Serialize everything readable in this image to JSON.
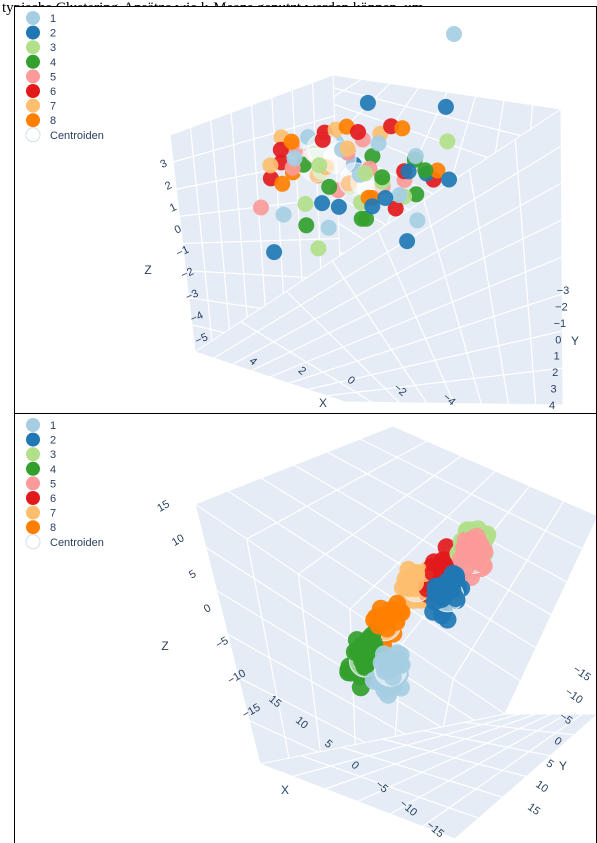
{
  "caption": "typische Clustering-Ansätze wie k-Means genutzt werden können, um",
  "legend": [
    {
      "label": "1",
      "color": "#a6cee3"
    },
    {
      "label": "2",
      "color": "#1f78b4"
    },
    {
      "label": "3",
      "color": "#b2df8a"
    },
    {
      "label": "4",
      "color": "#33a02c"
    },
    {
      "label": "5",
      "color": "#fb9a99"
    },
    {
      "label": "6",
      "color": "#e31a1c"
    },
    {
      "label": "7",
      "color": "#fdbf6f"
    },
    {
      "label": "8",
      "color": "#ff7f00"
    },
    {
      "label": "Centroiden",
      "color": "#ffffff"
    }
  ],
  "chart_data": [
    {
      "type": "scatter3d",
      "xlabel": "X",
      "ylabel": "Y",
      "zlabel": "Z",
      "x_ticks": [
        "4",
        "2",
        "0",
        "−2",
        "−4"
      ],
      "y_ticks": [
        "−3",
        "−2",
        "−1",
        "0",
        "1",
        "2",
        "3",
        "4"
      ],
      "z_ticks": [
        "3",
        "2",
        "1",
        "0",
        "−1",
        "−2",
        "−3",
        "−4",
        "−5"
      ],
      "xlim": [
        -5,
        5
      ],
      "ylim": [
        -4,
        4
      ],
      "zlim": [
        -5,
        4
      ],
      "series": [
        {
          "name": "1",
          "color": "#a6cee3",
          "points": [
            [
              0.5,
              -2,
              3
            ],
            [
              2,
              1,
              -1
            ],
            [
              -1,
              2,
              -4
            ],
            [
              -3,
              3,
              2
            ],
            [
              1,
              -3,
              1
            ],
            [
              3,
              0,
              -2
            ],
            [
              0.2,
              1,
              0
            ],
            [
              -2,
              -2,
              2.5
            ],
            [
              1.5,
              2.5,
              -3.2
            ],
            [
              -0.5,
              -1,
              1.5
            ],
            [
              2.8,
              -1.5,
              2
            ],
            [
              -2.7,
              1.2,
              -1
            ]
          ]
        },
        {
          "name": "2",
          "color": "#1f78b4",
          "points": [
            [
              3,
              2,
              -3
            ],
            [
              4,
              1,
              -2
            ],
            [
              3.5,
              0,
              -1
            ],
            [
              -3,
              -1,
              3
            ],
            [
              -4,
              2,
              0
            ],
            [
              0,
              3,
              -3
            ],
            [
              -2,
              1,
              -4
            ],
            [
              4,
              -2,
              -1
            ],
            [
              3.8,
              3,
              -3.5
            ],
            [
              -3.5,
              -2,
              1.5
            ],
            [
              1.2,
              2.8,
              -2.6
            ],
            [
              -1,
              3.5,
              -3.8
            ]
          ]
        },
        {
          "name": "3",
          "color": "#b2df8a",
          "points": [
            [
              1,
              -2,
              0.5
            ],
            [
              0,
              1,
              -1.5
            ],
            [
              -2,
              3,
              -2
            ],
            [
              2,
              -1,
              -2
            ],
            [
              1.5,
              1,
              -1
            ],
            [
              -1,
              -1,
              0
            ],
            [
              0.5,
              2.2,
              -3.1
            ],
            [
              2.6,
              -0.5,
              0.8
            ],
            [
              -1.5,
              -2.5,
              1.9
            ],
            [
              3,
              1.5,
              -2.4
            ]
          ]
        },
        {
          "name": "4",
          "color": "#33a02c",
          "points": [
            [
              -2,
              -3,
              3
            ],
            [
              3,
              -1,
              -1
            ],
            [
              2,
              2,
              -2
            ],
            [
              0,
              0,
              -2
            ],
            [
              -1,
              2,
              -3
            ],
            [
              1,
              -2,
              2
            ],
            [
              -3,
              1,
              -1
            ],
            [
              3.8,
              0.5,
              -0.8
            ],
            [
              0.5,
              3.2,
              -3
            ],
            [
              -2.2,
              -0.5,
              0.6
            ],
            [
              1.8,
              1.1,
              -2.8
            ]
          ]
        },
        {
          "name": "5",
          "color": "#fb9a99",
          "points": [
            [
              2,
              -2,
              2
            ],
            [
              -1,
              -3,
              3
            ],
            [
              0,
              -1,
              0
            ],
            [
              -2,
              0,
              -1
            ],
            [
              3,
              -3,
              1.5
            ],
            [
              -1,
              1.5,
              -2
            ],
            [
              1.2,
              -2.4,
              3.1
            ],
            [
              -2.8,
              -1.2,
              1.8
            ],
            [
              0.3,
              0.6,
              -0.6
            ]
          ]
        },
        {
          "name": "6",
          "color": "#e31a1c",
          "points": [
            [
              1,
              -3,
              3
            ],
            [
              -1,
              -2,
              3
            ],
            [
              2,
              -3,
              2.5
            ],
            [
              -2,
              -1,
              2
            ],
            [
              0,
              2,
              -2
            ],
            [
              -3,
              -2,
              2
            ],
            [
              3,
              -2,
              2.8
            ],
            [
              -0.6,
              3,
              -3.3
            ],
            [
              1.7,
              2.4,
              -3.6
            ],
            [
              -3.6,
              -0.3,
              1.4
            ],
            [
              0.8,
              -1.2,
              2.2
            ]
          ]
        },
        {
          "name": "7",
          "color": "#fdbf6f",
          "points": [
            [
              0,
              -3,
              3.5
            ],
            [
              -3,
              -3,
              2.5
            ],
            [
              1,
              -1,
              1
            ],
            [
              -2,
              -2,
              3
            ],
            [
              2,
              -3,
              3
            ],
            [
              -4,
              -1,
              1.7
            ],
            [
              2.5,
              -2.2,
              3.4
            ],
            [
              -0.8,
              -2.8,
              2.6
            ],
            [
              1.6,
              0.3,
              0.6
            ]
          ]
        },
        {
          "name": "8",
          "color": "#ff7f00",
          "points": [
            [
              -3,
              -2,
              3
            ],
            [
              2,
              -2,
              3
            ],
            [
              3,
              -2,
              1.5
            ],
            [
              -1,
              3,
              -3
            ],
            [
              0,
              -3,
              2.5
            ],
            [
              -4,
              0,
              1
            ],
            [
              1,
              1,
              -2
            ],
            [
              -2.4,
              -3.1,
              2.2
            ],
            [
              2.9,
              1.8,
              -2.5
            ],
            [
              0.6,
              -0.2,
              -0.4
            ]
          ]
        },
        {
          "name": "Centroiden",
          "color": "#ffffff",
          "points": [
            [
              0.2,
              -1.5,
              2
            ],
            [
              -0.5,
              -2,
              2.5
            ],
            [
              0.3,
              0.5,
              -1
            ],
            [
              -0.2,
              -1,
              1.2
            ],
            [
              0.8,
              0.2,
              -0.6
            ],
            [
              -1,
              -2.5,
              2.2
            ]
          ]
        }
      ]
    },
    {
      "type": "scatter3d",
      "xlabel": "X",
      "ylabel": "Y",
      "zlabel": "Z",
      "x_ticks": [
        "15",
        "10",
        "5",
        "0",
        "−5",
        "−10",
        "−15"
      ],
      "y_ticks": [
        "−15",
        "−10",
        "−5",
        "0",
        "5",
        "10",
        "15"
      ],
      "z_ticks": [
        "15",
        "10",
        "5",
        "0",
        "−5",
        "−10",
        "−15"
      ],
      "xlim": [
        -15,
        15
      ],
      "ylim": [
        -15,
        15
      ],
      "zlim": [
        -15,
        15
      ],
      "series": [
        {
          "name": "1",
          "color": "#a6cee3",
          "center": [
            -3,
            -3,
            -10
          ],
          "spread": 2.5,
          "count": 40
        },
        {
          "name": "2",
          "color": "#1f78b4",
          "center": [
            6,
            5,
            -6
          ],
          "spread": 2.4,
          "count": 38
        },
        {
          "name": "3",
          "color": "#b2df8a",
          "center": [
            6,
            -6,
            9
          ],
          "spread": 2.6,
          "count": 32
        },
        {
          "name": "4",
          "color": "#33a02c",
          "center": [
            -9,
            -9,
            -4
          ],
          "spread": 2.8,
          "count": 40
        },
        {
          "name": "5",
          "color": "#fb9a99",
          "center": [
            7,
            -4,
            6
          ],
          "spread": 2.4,
          "count": 34
        },
        {
          "name": "6",
          "color": "#e31a1c",
          "center": [
            0,
            -14,
            11
          ],
          "spread": 2.8,
          "count": 42
        },
        {
          "name": "7",
          "color": "#fdbf6f",
          "center": [
            -4,
            -14,
            10
          ],
          "spread": 2.4,
          "count": 30
        },
        {
          "name": "8",
          "color": "#ff7f00",
          "center": [
            -7,
            -9,
            1
          ],
          "spread": 2.5,
          "count": 32
        },
        {
          "name": "Centroiden",
          "color": "#ffffff",
          "points": [
            [
              -3,
              -3,
              -10
            ],
            [
              6,
              5,
              -6
            ],
            [
              6,
              -6,
              9
            ],
            [
              -9,
              -9,
              -4
            ],
            [
              7,
              -4,
              6
            ],
            [
              0,
              -14,
              11
            ],
            [
              -4,
              -14,
              10
            ],
            [
              -7,
              -9,
              1
            ]
          ]
        }
      ]
    }
  ]
}
